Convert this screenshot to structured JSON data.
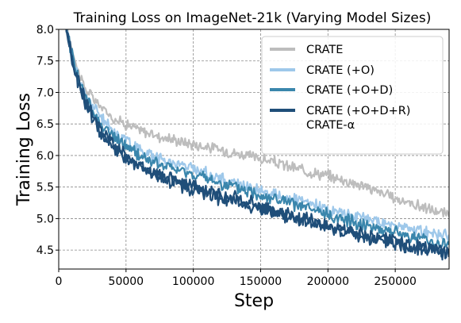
{
  "chart_data": {
    "type": "line",
    "title": "Training Loss on ImageNet-21k (Varying Model Sizes)",
    "xlabel": "Step",
    "ylabel": "Training Loss",
    "xlim": [
      0,
      290000
    ],
    "ylim": [
      4.2,
      8.0
    ],
    "xticks": [
      0,
      50000,
      100000,
      150000,
      200000,
      250000
    ],
    "yticks": [
      4.5,
      5.0,
      5.5,
      6.0,
      6.5,
      7.0,
      7.5,
      8.0
    ],
    "grid": true,
    "grid_style": "dashed",
    "legend_position": "top-right",
    "series": [
      {
        "name": "CRATE",
        "color": "#bdbdbd",
        "noise": 0.07,
        "x": [
          5000,
          10000,
          15000,
          20000,
          30000,
          40000,
          50000,
          60000,
          75000,
          100000,
          125000,
          150000,
          175000,
          200000,
          225000,
          250000,
          275000,
          290000
        ],
        "y": [
          8.1,
          7.7,
          7.3,
          7.05,
          6.8,
          6.6,
          6.5,
          6.4,
          6.3,
          6.18,
          6.07,
          5.95,
          5.8,
          5.68,
          5.53,
          5.32,
          5.15,
          5.05
        ]
      },
      {
        "name": "CRATE (+O)",
        "color": "#9ec8ea",
        "noise": 0.07,
        "x": [
          5000,
          10000,
          15000,
          20000,
          30000,
          40000,
          50000,
          60000,
          75000,
          100000,
          125000,
          150000,
          175000,
          200000,
          225000,
          250000,
          275000,
          290000
        ],
        "y": [
          8.1,
          7.6,
          7.2,
          6.95,
          6.65,
          6.4,
          6.25,
          6.1,
          5.95,
          5.8,
          5.6,
          5.45,
          5.3,
          5.15,
          5.02,
          4.88,
          4.78,
          4.72
        ]
      },
      {
        "name": "CRATE (+O+D)",
        "color": "#3a86ac",
        "noise": 0.08,
        "x": [
          5000,
          10000,
          15000,
          20000,
          30000,
          40000,
          50000,
          60000,
          75000,
          100000,
          125000,
          150000,
          175000,
          200000,
          225000,
          250000,
          275000,
          290000
        ],
        "y": [
          8.1,
          7.6,
          7.2,
          6.9,
          6.55,
          6.3,
          6.15,
          6.0,
          5.85,
          5.7,
          5.52,
          5.38,
          5.22,
          5.05,
          4.92,
          4.78,
          4.65,
          4.58
        ]
      },
      {
        "name": "CRATE (+O+D+R)",
        "color": "#1f4e79",
        "noise": 0.09,
        "x": [
          5000,
          10000,
          15000,
          20000,
          30000,
          40000,
          50000,
          60000,
          75000,
          100000,
          125000,
          150000,
          175000,
          200000,
          225000,
          250000,
          275000,
          290000
        ],
        "y": [
          8.1,
          7.55,
          7.15,
          6.85,
          6.45,
          6.2,
          6.0,
          5.85,
          5.7,
          5.5,
          5.35,
          5.2,
          5.05,
          4.9,
          4.75,
          4.62,
          4.52,
          4.47
        ]
      },
      {
        "name": "CRATE-α",
        "color": "#1f4e79",
        "noise": 0.09,
        "x": [
          5000,
          10000,
          15000,
          20000,
          30000,
          40000,
          50000,
          60000,
          75000,
          100000,
          125000,
          150000,
          175000,
          200000,
          225000,
          250000,
          275000,
          290000
        ],
        "y": [
          8.1,
          7.5,
          7.1,
          6.8,
          6.4,
          6.15,
          5.95,
          5.8,
          5.65,
          5.45,
          5.3,
          5.15,
          5.0,
          4.85,
          4.72,
          4.6,
          4.5,
          4.45
        ]
      }
    ]
  }
}
